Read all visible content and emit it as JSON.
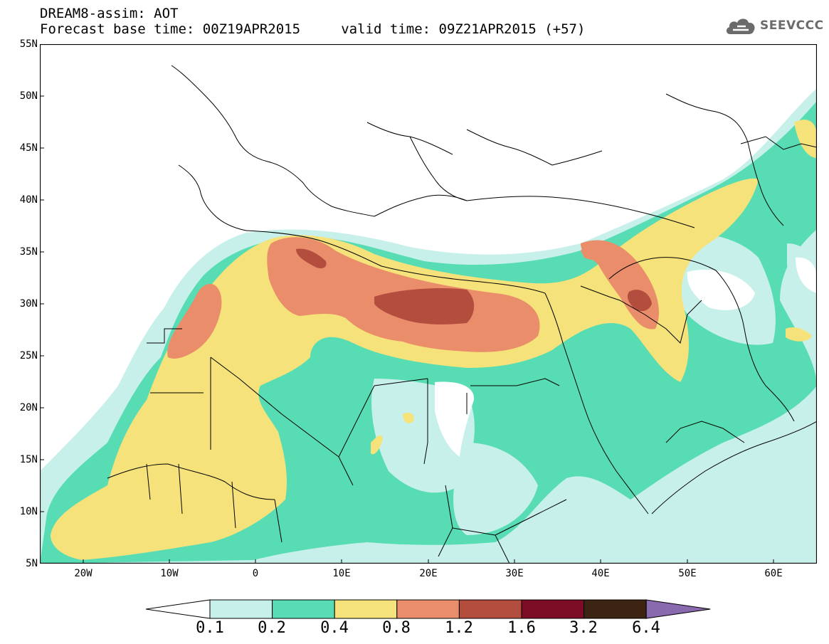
{
  "header": {
    "line1": "DREAM8-assim: AOT",
    "line2": "Forecast base time: 00Z19APR2015     valid time: 09Z21APR2015 (+57)"
  },
  "logo": {
    "text": "SEEVCCC",
    "icon": "cloud-icon"
  },
  "map": {
    "y_labels": [
      "55N",
      "50N",
      "45N",
      "40N",
      "35N",
      "30N",
      "25N",
      "20N",
      "15N",
      "10N",
      "5N"
    ],
    "x_labels": [
      "20W",
      "10W",
      "0",
      "10E",
      "20E",
      "30E",
      "40E",
      "50E",
      "60E"
    ]
  },
  "legend": {
    "levels": [
      "0.1",
      "0.2",
      "0.4",
      "0.8",
      "1.2",
      "1.6",
      "3.2",
      "6.4"
    ],
    "colors": [
      "#ffffff",
      "#c8f0ea",
      "#57dcb4",
      "#f5e27a",
      "#ea8d6a",
      "#b34d3e",
      "#7d0d27",
      "#3d2412",
      "#8a6aae"
    ]
  }
}
